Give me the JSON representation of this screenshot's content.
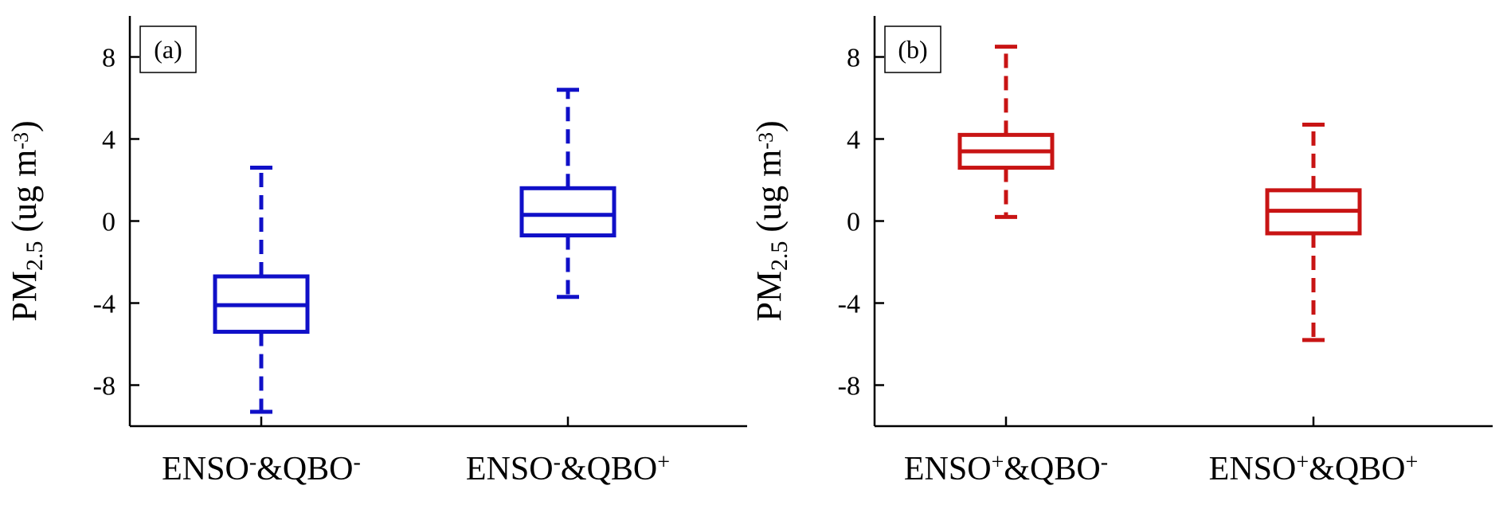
{
  "chart_data": [
    {
      "type": "box",
      "panel_label": "(a)",
      "ylabel": {
        "main": "PM",
        "sub": "2.5",
        "unit_open": " (ug m",
        "unit_sup": "-3",
        "unit_close": ")"
      },
      "ylim": [
        -10,
        10
      ],
      "yticks": [
        -8,
        -4,
        0,
        4,
        8
      ],
      "ytick_labels": [
        "-8",
        "-4",
        "0",
        "4",
        "8"
      ],
      "color": "#1010c8",
      "categories": [
        {
          "base1": "ENSO",
          "sup1": "-",
          "base2": "&QBO",
          "sup2": "-"
        },
        {
          "base1": "ENSO",
          "sup1": "-",
          "base2": "&QBO",
          "sup2": "+"
        }
      ],
      "boxes": [
        {
          "whisker_low": -9.3,
          "q1": -5.4,
          "median": -4.1,
          "q3": -2.7,
          "whisker_high": 2.6
        },
        {
          "whisker_low": -3.7,
          "q1": -0.7,
          "median": 0.3,
          "q3": 1.6,
          "whisker_high": 6.4
        }
      ]
    },
    {
      "type": "box",
      "panel_label": "(b)",
      "ylabel": {
        "main": "PM",
        "sub": "2.5",
        "unit_open": " (ug m",
        "unit_sup": "-3",
        "unit_close": ")"
      },
      "ylim": [
        -10,
        10
      ],
      "yticks": [
        -8,
        -4,
        0,
        4,
        8
      ],
      "ytick_labels": [
        "-8",
        "-4",
        "0",
        "4",
        "8"
      ],
      "color": "#c81414",
      "categories": [
        {
          "base1": "ENSO",
          "sup1": "+",
          "base2": "&QBO",
          "sup2": "-"
        },
        {
          "base1": "ENSO",
          "sup1": "+",
          "base2": "&QBO",
          "sup2": "+"
        }
      ],
      "boxes": [
        {
          "whisker_low": 0.2,
          "q1": 2.6,
          "median": 3.4,
          "q3": 4.2,
          "whisker_high": 8.5
        },
        {
          "whisker_low": -5.8,
          "q1": -0.6,
          "median": 0.5,
          "q3": 1.5,
          "whisker_high": 4.7
        }
      ]
    }
  ]
}
